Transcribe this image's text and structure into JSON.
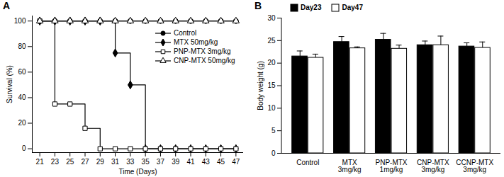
{
  "chart_data": [
    {
      "type": "line",
      "title": "A",
      "x_label": "Time (Days)",
      "y_label": "Survival (%)",
      "x": [
        21,
        23,
        25,
        27,
        29,
        31,
        33,
        35,
        37,
        39,
        41,
        43,
        45,
        47
      ],
      "series": [
        {
          "name": "Control",
          "color": "#000000",
          "marker": "circle",
          "values": [
            100,
            100,
            100,
            100,
            100,
            100,
            100,
            100,
            100,
            100,
            100,
            100,
            100,
            100
          ]
        },
        {
          "name": "MTX 50mg/kg",
          "color": "#000000",
          "marker": "diamond",
          "values": [
            100,
            100,
            100,
            100,
            100,
            75,
            50,
            0,
            0,
            0,
            0,
            0,
            0,
            0
          ]
        },
        {
          "name": "PNP-MTX 3mg/kg",
          "color": "#000000",
          "marker": "square-open",
          "values": [
            100,
            35,
            35,
            16,
            0,
            0,
            0,
            0,
            0,
            0,
            0,
            0,
            0,
            0
          ]
        },
        {
          "name": "CNP-MTX 50mg/kg",
          "color": "#000000",
          "marker": "triangle-open",
          "values": [
            100,
            100,
            100,
            100,
            100,
            100,
            100,
            100,
            100,
            100,
            100,
            100,
            100,
            100
          ]
        }
      ],
      "xlim": [
        20,
        48
      ],
      "ylim": [
        -3,
        104
      ],
      "xticks": [
        21,
        23,
        25,
        27,
        29,
        31,
        33,
        35,
        37,
        39,
        41,
        43,
        45,
        47
      ],
      "yticks": [
        0,
        20,
        40,
        60,
        80,
        100
      ],
      "line_style": "step",
      "legend": "right"
    },
    {
      "type": "bar",
      "title": "B",
      "y_label": "Body weight (g)",
      "categories": [
        "Control",
        "MTX\n3mg/kg",
        "PNP-MTX\n1mg/kg",
        "CNP-MTX\n3mg/kg",
        "CCNP-MTX\n3mg/kg"
      ],
      "series": [
        {
          "name": "Day23",
          "color": "#000000",
          "values": [
            21.5,
            24.7,
            25.2,
            24.0,
            23.7
          ],
          "errors": [
            1.2,
            1.2,
            1.4,
            0.9,
            0.8
          ]
        },
        {
          "name": "Day47",
          "color": "#ffffff",
          "values": [
            21.2,
            23.3,
            23.2,
            24.0,
            23.4
          ],
          "errors": [
            0.8,
            0.3,
            0.8,
            2.0,
            1.3
          ]
        }
      ],
      "ylim": [
        0,
        30
      ],
      "yticks": [
        0,
        5,
        10,
        15,
        20,
        25,
        30
      ],
      "legend": "top-left"
    }
  ]
}
